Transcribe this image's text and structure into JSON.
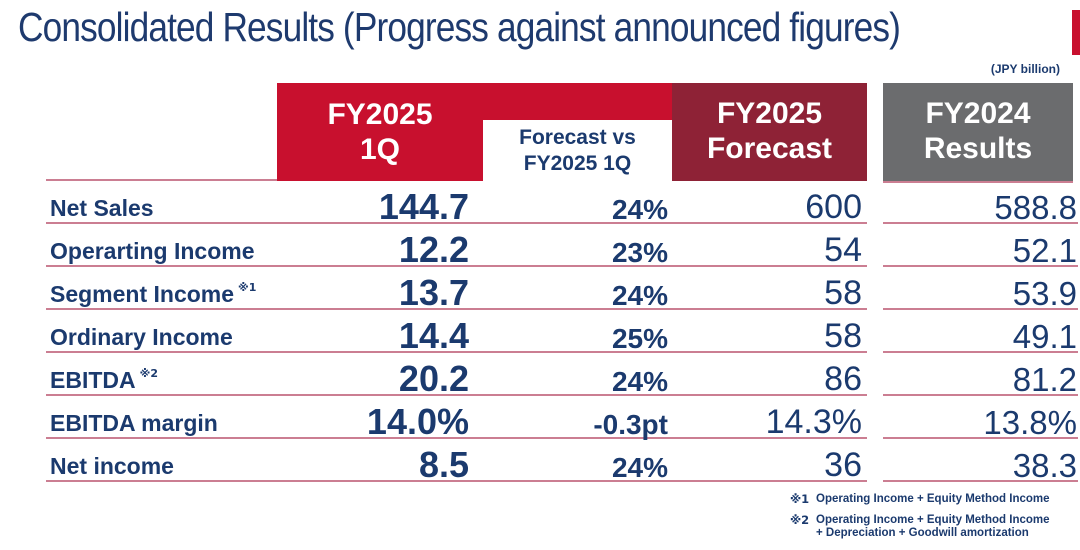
{
  "title": "Consolidated Results (Progress against announced figures)",
  "unit_note": "(JPY billion)",
  "colors": {
    "accent_red": "#c8102e",
    "forecast_maroon": "#8e2236",
    "results_gray": "#6b6c6e",
    "text_navy": "#1b3a6e",
    "divider_pink": "#cb7e92"
  },
  "header": {
    "q1": {
      "line1": "FY2025",
      "line2": "1Q"
    },
    "vs": {
      "line1": "Forecast vs",
      "line2": "FY2025 1Q"
    },
    "forecast": {
      "line1": "FY2025",
      "line2": "Forecast"
    },
    "fy2024": {
      "line1": "FY2024",
      "line2": "Results"
    }
  },
  "table": {
    "rows": [
      {
        "label": "Net Sales",
        "sup": "",
        "q1": "144.7",
        "vs": "24%",
        "forecast": "600",
        "fy2024": "588.8"
      },
      {
        "label": "Operarting Income",
        "sup": "",
        "q1": "12.2",
        "vs": "23%",
        "forecast": "54",
        "fy2024": "52.1"
      },
      {
        "label": "Segment Income",
        "sup": "※1",
        "q1": "13.7",
        "vs": "24%",
        "forecast": "58",
        "fy2024": "53.9"
      },
      {
        "label": "Ordinary Income",
        "sup": "",
        "q1": "14.4",
        "vs": "25%",
        "forecast": "58",
        "fy2024": "49.1"
      },
      {
        "label": "EBITDA",
        "sup": "※2",
        "q1": "20.2",
        "vs": "24%",
        "forecast": "86",
        "fy2024": "81.2"
      },
      {
        "label": "EBITDA margin",
        "sup": "",
        "q1": "14.0%",
        "vs": "-0.3pt",
        "forecast": "14.3%",
        "fy2024": "13.8%"
      },
      {
        "label": "Net income",
        "sup": "",
        "q1": "8.5",
        "vs": "24%",
        "forecast": "36",
        "fy2024": "38.3"
      }
    ]
  },
  "footnotes": [
    {
      "mark": "※1",
      "text": "Operating Income + Equity Method Income",
      "text2": ""
    },
    {
      "mark": "※2",
      "text": "Operating Income + Equity Method Income",
      "text2": "+ Depreciation + Goodwill amortization"
    }
  ]
}
